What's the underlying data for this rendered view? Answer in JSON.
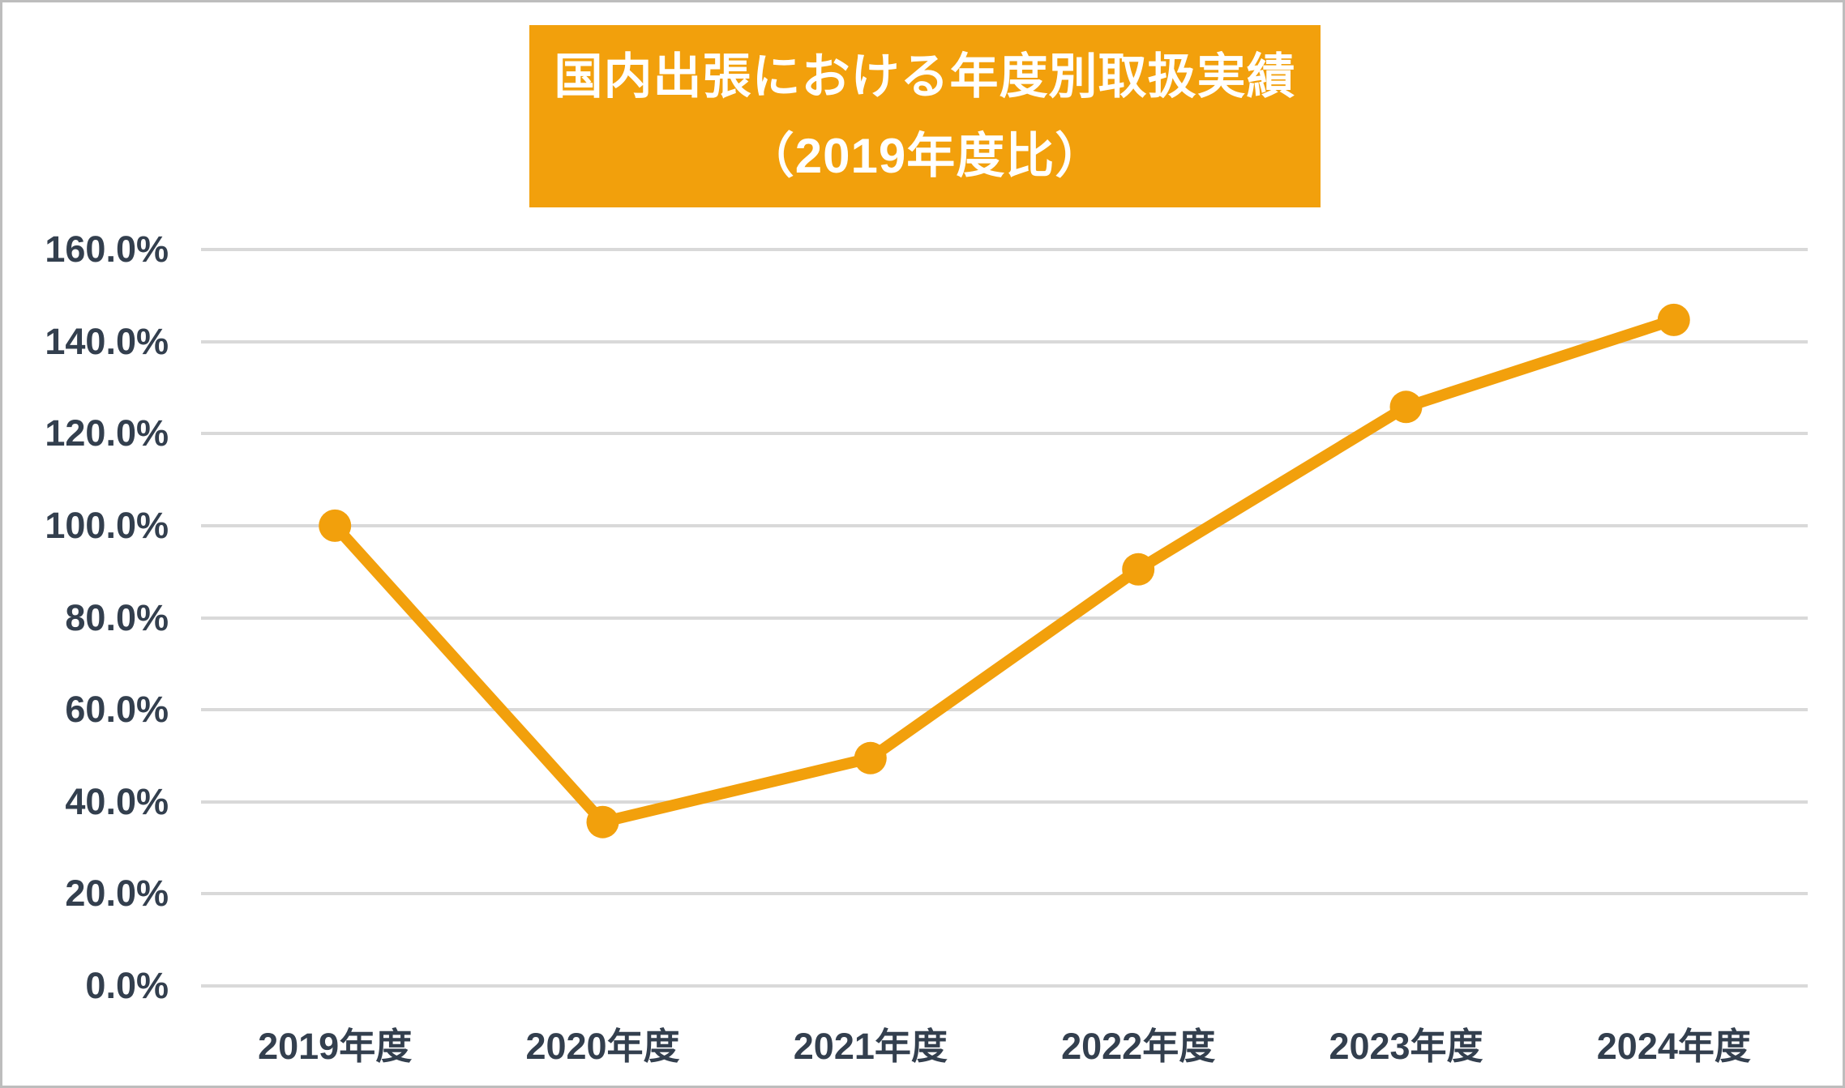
{
  "chart": {
    "title_line1": "国内出張における年度別取扱実績",
    "title_line2": "（2019年度比）"
  },
  "colors": {
    "background": "#FFFFFF",
    "frame_border": "#BDBDBD",
    "title_bg": "#F2A00C",
    "title_text": "#FFFFFF",
    "axis_text": "#333F4E",
    "gridline": "#D9D9D9",
    "line": "#F2A00C",
    "marker": "#F2A00C"
  },
  "chart_data": {
    "type": "line",
    "title": "国内出張における年度別取扱実績（2019年度比）",
    "categories": [
      "2019年度",
      "2020年度",
      "2021年度",
      "2022年度",
      "2023年度",
      "2024年度"
    ],
    "values": [
      100.0,
      35.6,
      49.5,
      90.5,
      125.8,
      144.7
    ],
    "unit": "%",
    "xlabel": "",
    "ylabel": "",
    "ylim": [
      0,
      160
    ],
    "ytick_step": 20,
    "ytick_labels": [
      "0.0%",
      "20.0%",
      "40.0%",
      "60.0%",
      "80.0%",
      "100.0%",
      "120.0%",
      "140.0%",
      "160.0%"
    ],
    "grid": true,
    "legend": false,
    "marker": "circle"
  }
}
